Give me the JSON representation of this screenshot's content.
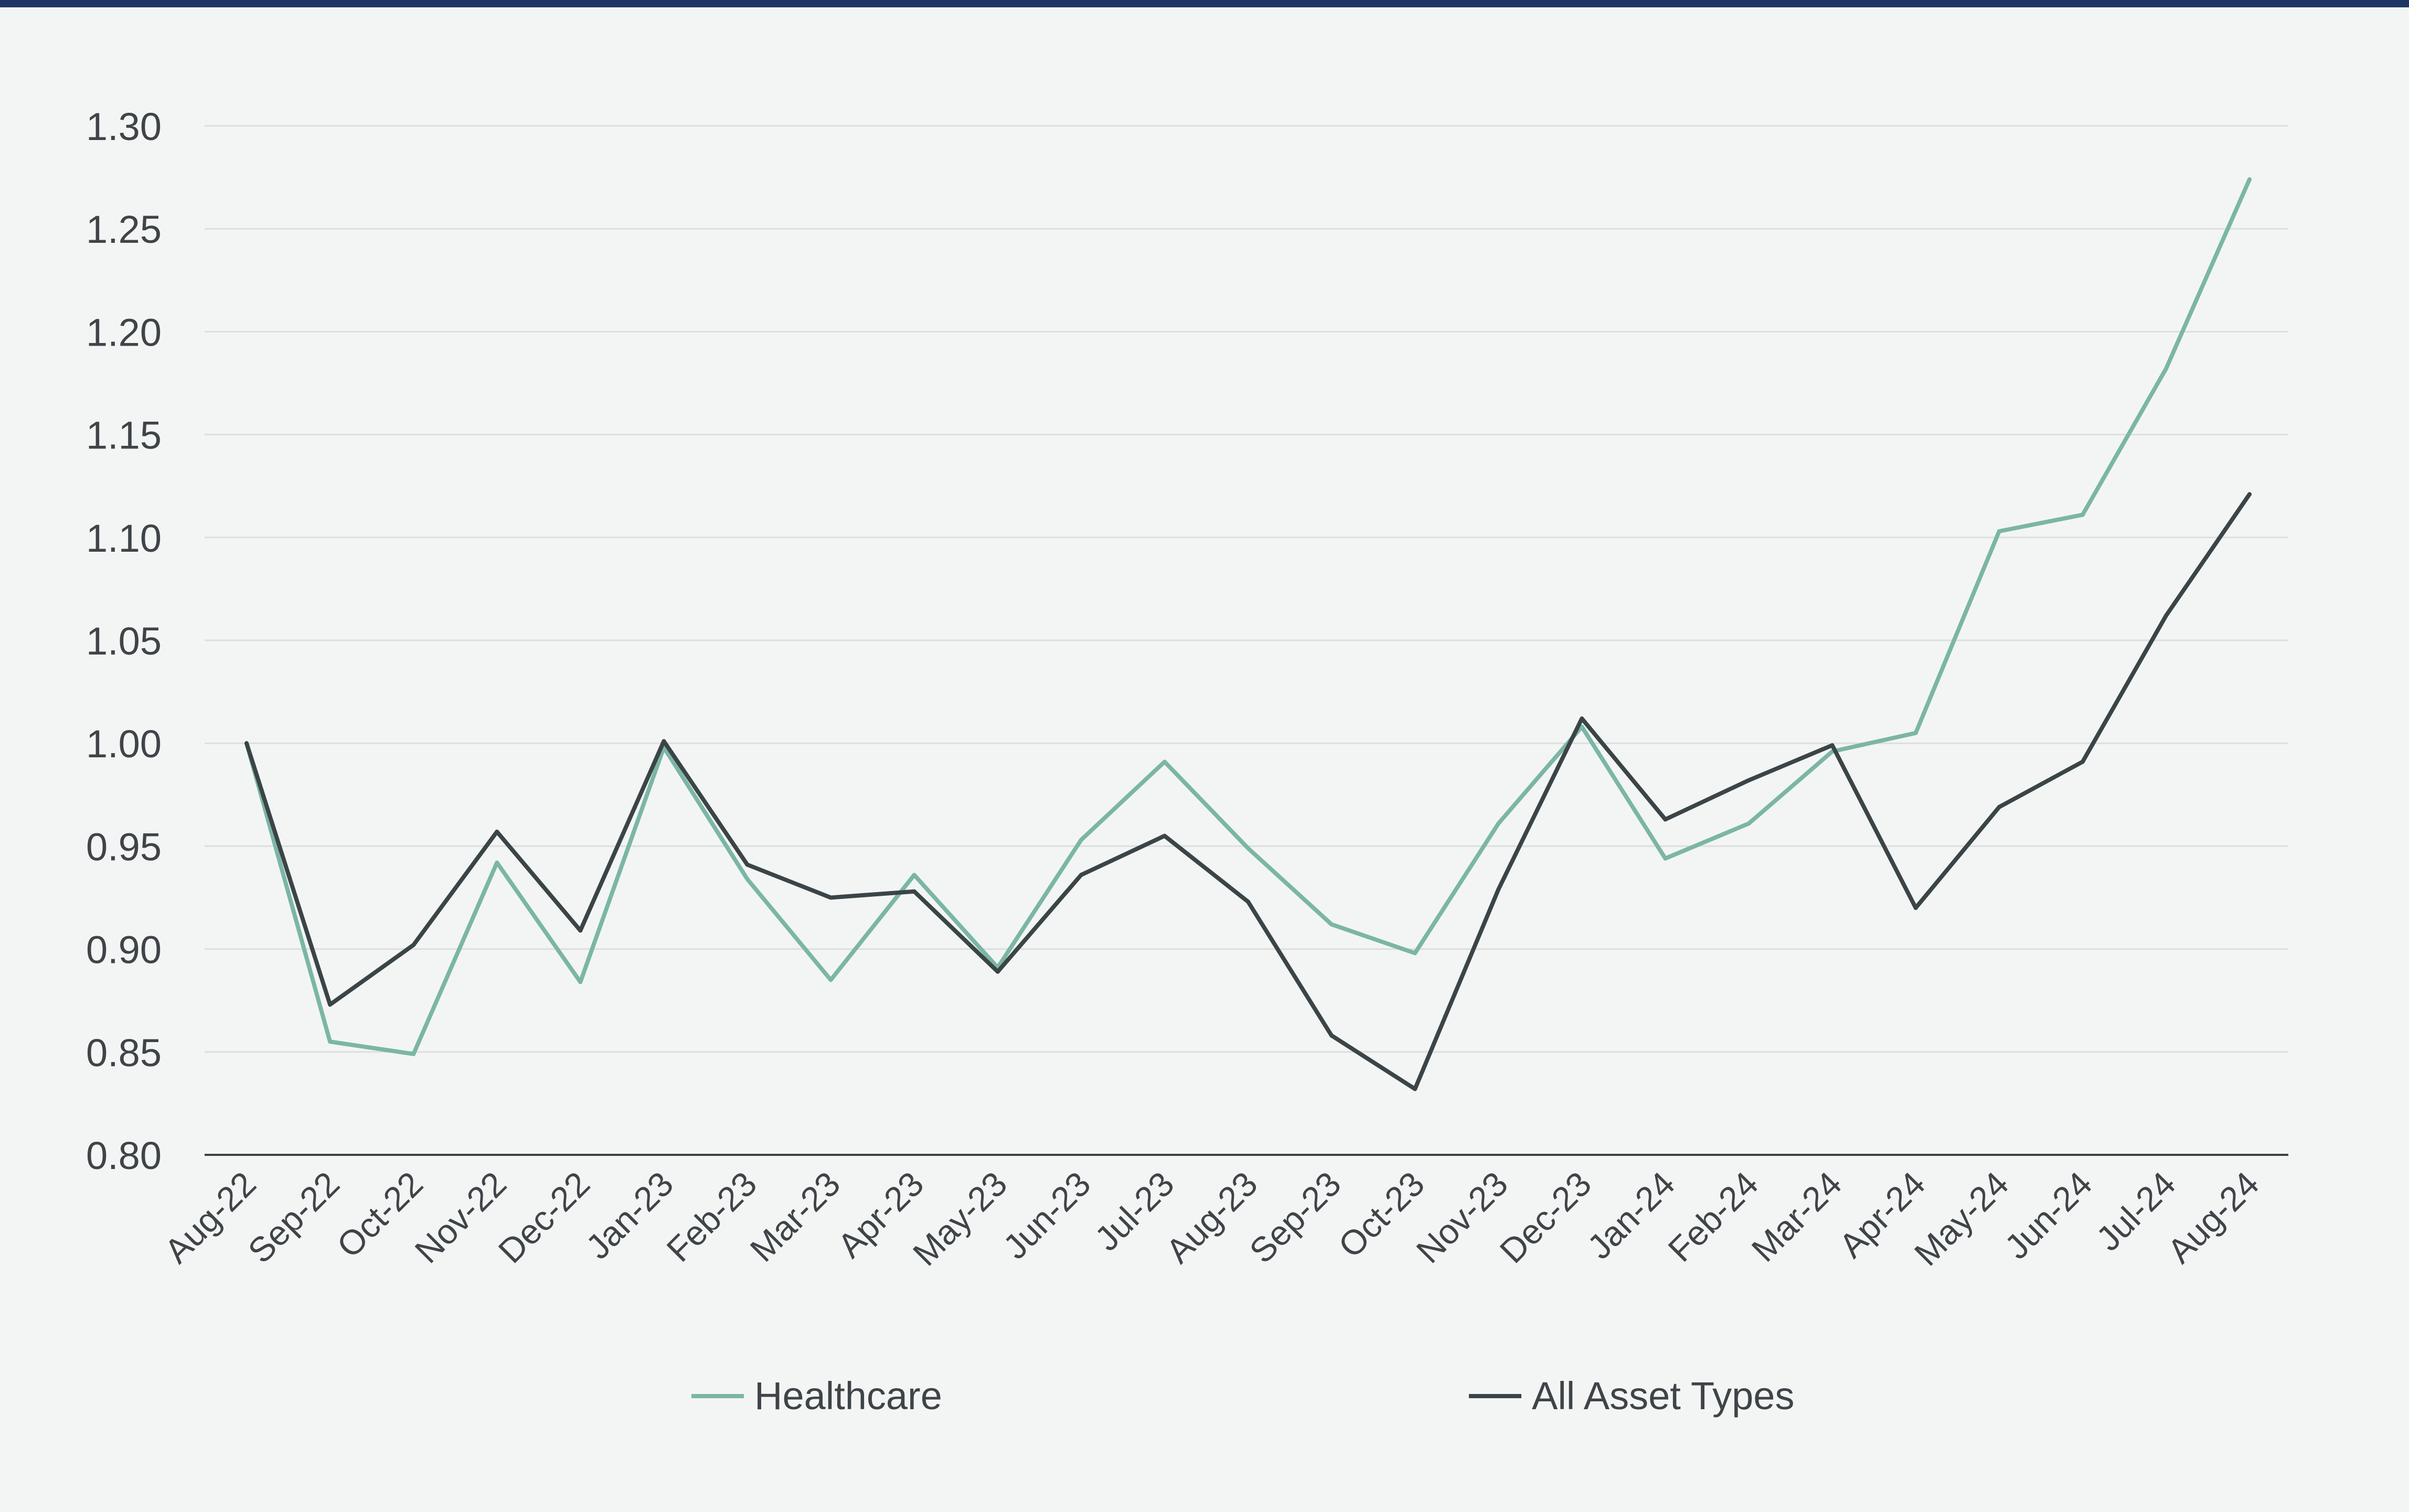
{
  "colors": {
    "background": "#f3f5f4",
    "top_bar": "#1f3566",
    "grid": "#dcdfdd",
    "axis": "#3a4044",
    "text": "#3e4448",
    "healthcare": "#7bb6a5",
    "all_asset_types": "#3b4447"
  },
  "chart_data": {
    "type": "line",
    "title": "",
    "xlabel": "",
    "ylabel": "",
    "ylim": [
      0.8,
      1.3
    ],
    "yticks": [
      "0.80",
      "0.85",
      "0.90",
      "0.95",
      "1.00",
      "1.05",
      "1.10",
      "1.15",
      "1.20",
      "1.25",
      "1.30"
    ],
    "grid": true,
    "legend_position": "bottom",
    "categories": [
      "Aug-22",
      "Sep-22",
      "Oct-22",
      "Nov-22",
      "Dec-22",
      "Jan-23",
      "Feb-23",
      "Mar-23",
      "Apr-23",
      "May-23",
      "Jun-23",
      "Jul-23",
      "Aug-23",
      "Sep-23",
      "Oct-23",
      "Nov-23",
      "Dec-23",
      "Jan-24",
      "Feb-24",
      "Mar-24",
      "Apr-24",
      "May-24",
      "Jun-24",
      "Jul-24",
      "Aug-24"
    ],
    "series": [
      {
        "name": "Healthcare",
        "color": "#7bb6a5",
        "values": [
          1.0,
          0.855,
          0.849,
          0.942,
          0.884,
          0.998,
          0.934,
          0.885,
          0.936,
          0.891,
          0.953,
          0.991,
          0.949,
          0.912,
          0.898,
          0.961,
          1.008,
          0.944,
          0.961,
          0.996,
          1.005,
          1.103,
          1.111,
          1.182,
          1.274
        ]
      },
      {
        "name": "All Asset Types",
        "color": "#3b4447",
        "values": [
          1.0,
          0.873,
          0.902,
          0.957,
          0.909,
          1.001,
          0.941,
          0.925,
          0.928,
          0.889,
          0.936,
          0.955,
          0.923,
          0.858,
          0.832,
          0.929,
          1.012,
          0.963,
          0.982,
          0.999,
          0.92,
          0.969,
          0.991,
          1.062,
          1.121
        ]
      }
    ]
  }
}
